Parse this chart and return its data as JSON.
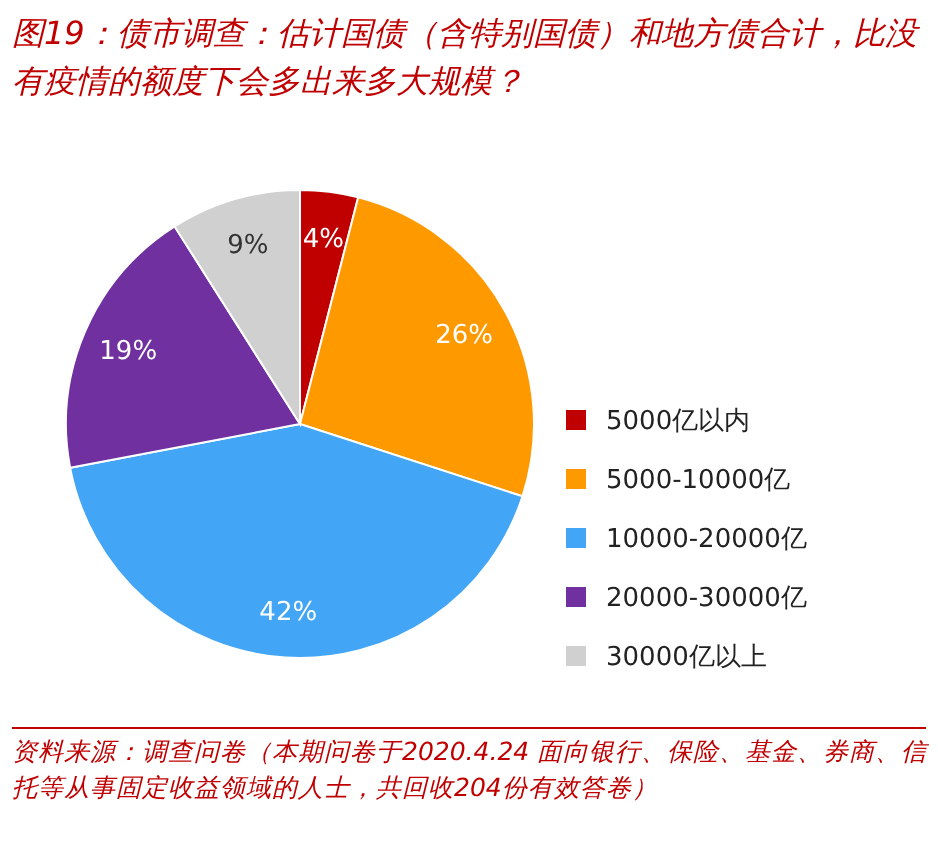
{
  "chart_data": {
    "type": "pie",
    "title": "图19：债市调查：估计国债（含特别国债）和地方债合计，比没有疫情的额度下会多出来多大规模？",
    "categories": [
      "5000亿以内",
      "5000-10000亿",
      "10000-20000亿",
      "20000-30000亿",
      "30000亿以上"
    ],
    "values": [
      4,
      26,
      42,
      19,
      9
    ],
    "colors": [
      "#c00000",
      "#ff9900",
      "#42a5f5",
      "#7030a0",
      "#d0d0d0"
    ],
    "value_labels": [
      "4%",
      "26%",
      "42%",
      "19%",
      "9%"
    ],
    "legend": "right",
    "annotations": [
      "资料来源：调查问卷（本期问卷于2020.4.24 面向银行、保险、基金、券商、信托等从事固定收益领域的人士，共回收204份有效答卷）"
    ]
  }
}
